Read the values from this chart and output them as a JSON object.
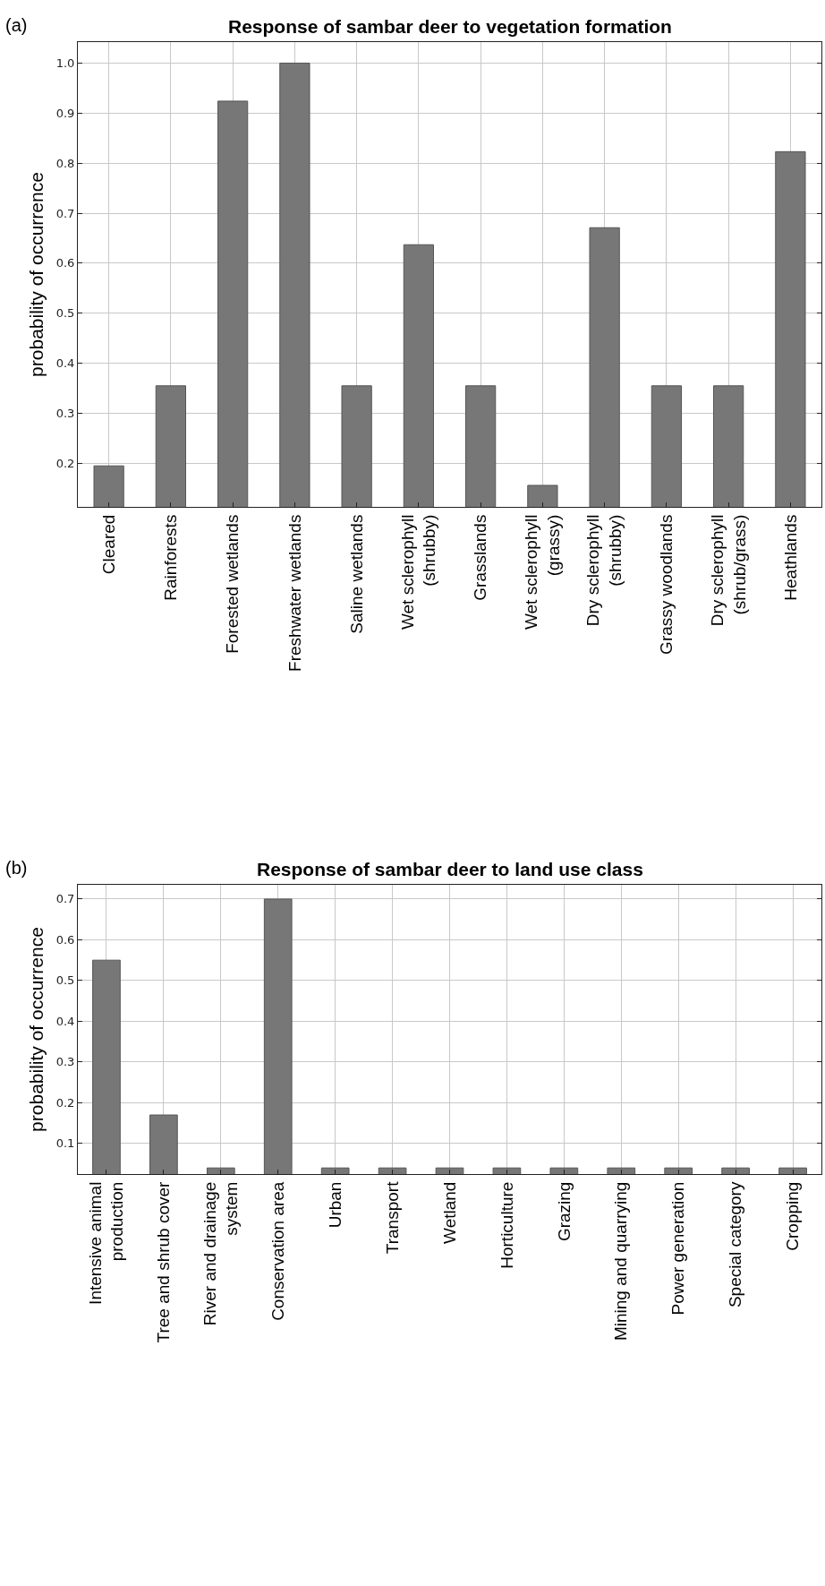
{
  "chart_data": [
    {
      "type": "bar",
      "title": "Response of sambar deer to vegetation formation",
      "ylabel": "probability of occurrence",
      "annotations": [
        "(a)"
      ],
      "categories": [
        "Cleared",
        "Rainforests",
        "Forested wetlands",
        "Freshwater wetlands",
        "Saline wetlands",
        "Wet sclerophyll\n(shrubby)",
        "Grasslands",
        "Wet sclerophyll\n(grassy)",
        "Dry sclerophyll\n(shrubby)",
        "Grassy woodlands",
        "Dry sclerophyll\n(shrub/grass)",
        "Heathlands"
      ],
      "values": [
        0.195,
        0.355,
        0.924,
        1.0,
        0.355,
        0.637,
        0.355,
        0.156,
        0.671,
        0.355,
        0.355,
        0.823
      ],
      "color": "#777777",
      "ylim": [
        0.113,
        1.042
      ],
      "yticks": [
        {
          "value": 0.2,
          "label": "0.2"
        },
        {
          "value": 0.3,
          "label": "0.3"
        },
        {
          "value": 0.4,
          "label": "0.4"
        },
        {
          "value": 0.5,
          "label": "0.5"
        },
        {
          "value": 0.6,
          "label": "0.6"
        },
        {
          "value": 0.7,
          "label": "0.7"
        },
        {
          "value": 0.8,
          "label": "0.8"
        },
        {
          "value": 0.9,
          "label": "0.9"
        },
        {
          "value": 1.0,
          "label": "1.0"
        }
      ],
      "grid": true
    },
    {
      "type": "bar",
      "title": "Response of sambar deer to land use class",
      "ylabel": "probability of occurrence",
      "annotations": [
        "(b)"
      ],
      "categories": [
        "Intensive animal\nproduction",
        "Tree and shrub cover",
        "River and drainage\nsystem",
        "Conservation area",
        "Urban",
        "Transport",
        "Wetland",
        "Horticulture",
        "Grazing",
        "Mining and quarrying",
        "Power generation",
        "Special category",
        "Cropping"
      ],
      "values": [
        0.55,
        0.17,
        0.04,
        0.7,
        0.04,
        0.04,
        0.04,
        0.04,
        0.04,
        0.04,
        0.04,
        0.04,
        0.04
      ],
      "color": "#777777",
      "ylim": [
        0.025,
        0.735
      ],
      "yticks": [
        0.1,
        0.2,
        0.3,
        0.4,
        0.5,
        0.6,
        0.7
      ],
      "grid": true
    }
  ]
}
